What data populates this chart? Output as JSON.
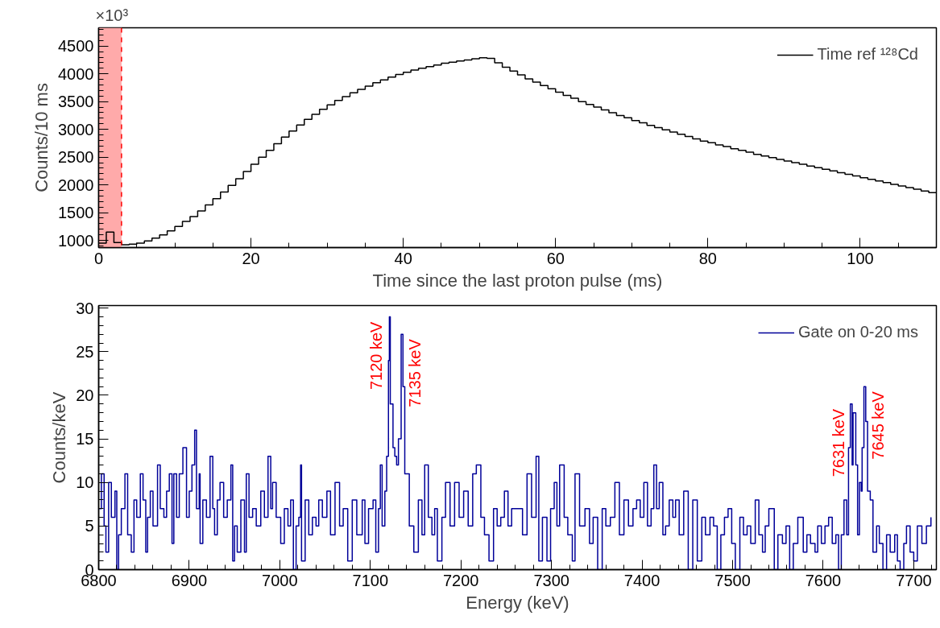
{
  "chart_data": [
    {
      "type": "histogram",
      "xlabel": "Time since the last proton pulse (ms)",
      "ylabel": "Counts/10 ms",
      "bins": [
        0,
        1,
        2,
        3,
        4,
        5,
        6,
        7,
        8,
        9,
        10,
        11,
        12,
        13,
        14,
        15,
        16,
        17,
        18,
        19,
        20,
        21,
        22,
        23,
        24,
        25,
        26,
        27,
        28,
        29,
        30,
        31,
        32,
        33,
        34,
        35,
        36,
        37,
        38,
        39,
        40,
        41,
        42,
        43,
        44,
        45,
        46,
        47,
        48,
        49,
        50,
        51,
        52,
        53,
        54,
        55,
        56,
        57,
        58,
        59,
        60,
        61,
        62,
        63,
        64,
        65,
        66,
        67,
        68,
        69,
        70,
        71,
        72,
        73,
        74,
        75,
        76,
        77,
        78,
        79,
        80,
        81,
        82,
        83,
        84,
        85,
        86,
        87,
        88,
        89,
        90,
        91,
        92,
        93,
        94,
        95,
        96,
        97,
        98,
        99,
        100,
        101,
        102,
        103,
        104,
        105,
        106,
        107,
        108,
        109,
        110
      ],
      "series": [
        {
          "name": "Time ref ¹²⁸Cd",
          "color": "#000000",
          "values": [
            950,
            1150,
            960,
            920,
            930,
            950,
            990,
            1040,
            1100,
            1170,
            1250,
            1340,
            1430,
            1530,
            1640,
            1750,
            1870,
            1990,
            2110,
            2240,
            2370,
            2500,
            2620,
            2740,
            2860,
            2970,
            3080,
            3180,
            3270,
            3360,
            3440,
            3520,
            3590,
            3660,
            3720,
            3780,
            3840,
            3890,
            3940,
            3990,
            4030,
            4070,
            4100,
            4130,
            4160,
            4190,
            4210,
            4230,
            4250,
            4270,
            4290,
            4280,
            4200,
            4120,
            4050,
            3980,
            3910,
            3850,
            3790,
            3730,
            3670,
            3610,
            3560,
            3500,
            3450,
            3400,
            3350,
            3300,
            3250,
            3210,
            3160,
            3120,
            3070,
            3030,
            2990,
            2950,
            2910,
            2870,
            2830,
            2790,
            2760,
            2720,
            2690,
            2650,
            2620,
            2590,
            2550,
            2520,
            2490,
            2460,
            2430,
            2400,
            2370,
            2340,
            2310,
            2280,
            2250,
            2220,
            2190,
            2160,
            2130,
            2100,
            2070,
            2040,
            2010,
            1980,
            1950,
            1920,
            1890,
            1860
          ]
        }
      ],
      "xlim": [
        0,
        110
      ],
      "xticks": [
        0,
        20,
        40,
        60,
        80,
        100
      ],
      "ylim": [
        870,
        4830
      ],
      "yticks": [
        1000,
        1500,
        2000,
        2500,
        3000,
        3500,
        4000,
        4500
      ],
      "bands": [
        {
          "axis": "x",
          "from": 0,
          "to": 3,
          "color": "#ffaaaa"
        }
      ],
      "ref_lines": [
        {
          "axis": "x",
          "value": 3,
          "color": "#ff0000",
          "line_style": "dashed"
        }
      ],
      "annotations": [
        "×10³"
      ],
      "legend": "top right",
      "grid": false
    },
    {
      "type": "step",
      "xlabel": "Energy (keV)",
      "ylabel": "Counts/keV",
      "series": [
        {
          "name": "Gate on 0-20 ms",
          "color": "#000099",
          "x": [
            6800,
            6803,
            6806,
            6808,
            6811,
            6814,
            6818,
            6820,
            6822,
            6825,
            6829,
            6832,
            6836,
            6839,
            6842,
            6846,
            6849,
            6852,
            6854,
            6857,
            6860,
            6865,
            6868,
            6872,
            6875,
            6878,
            6881,
            6883,
            6886,
            6889,
            6893,
            6897,
            6900,
            6903,
            6906,
            6908,
            6911,
            6912,
            6915,
            6919,
            6923,
            6926,
            6928,
            6931,
            6934,
            6938,
            6942,
            6946,
            6948,
            6950,
            6953,
            6957,
            6961,
            6963,
            6966,
            6970,
            6974,
            6979,
            6983,
            6987,
            6990,
            6992,
            6996,
            7001,
            7005,
            7009,
            7012,
            7015,
            7018,
            7021,
            7023,
            7024,
            7028,
            7032,
            7036,
            7040,
            7043,
            7047,
            7052,
            7056,
            7061,
            7066,
            7070,
            7075,
            7080,
            7085,
            7091,
            7094,
            7098,
            7103,
            7106,
            7109,
            7111,
            7113,
            7116,
            7118,
            7120,
            7121,
            7122,
            7125,
            7127,
            7129,
            7131,
            7134,
            7136,
            7138,
            7140,
            7143,
            7148,
            7153,
            7157,
            7160,
            7164,
            7168,
            7171,
            7174,
            7179,
            7183,
            7188,
            7193,
            7198,
            7203,
            7208,
            7213,
            7217,
            7222,
            7226,
            7231,
            7236,
            7240,
            7244,
            7248,
            7252,
            7256,
            7263,
            7268,
            7273,
            7278,
            7283,
            7286,
            7290,
            7295,
            7299,
            7303,
            7306,
            7309,
            7314,
            7318,
            7323,
            7326,
            7331,
            7337,
            7342,
            7346,
            7351,
            7356,
            7360,
            7365,
            7370,
            7375,
            7380,
            7385,
            7390,
            7394,
            7398,
            7402,
            7406,
            7410,
            7413,
            7416,
            7419,
            7423,
            7426,
            7430,
            7434,
            7437,
            7441,
            7446,
            7451,
            7456,
            7461,
            7466,
            7470,
            7475,
            7479,
            7483,
            7487,
            7491,
            7495,
            7499,
            7503,
            7508,
            7512,
            7516,
            7520,
            7525,
            7529,
            7533,
            7536,
            7540,
            7546,
            7550,
            7555,
            7559,
            7563,
            7567,
            7572,
            7578,
            7582,
            7586,
            7591,
            7594,
            7598,
            7602,
            7606,
            7610,
            7614,
            7617,
            7620,
            7623,
            7626,
            7628,
            7630,
            7632,
            7633,
            7636,
            7638,
            7640,
            7642,
            7643,
            7645,
            7647,
            7649,
            7652,
            7655,
            7659,
            7662,
            7666,
            7670,
            7674,
            7679,
            7682,
            7685,
            7689,
            7692,
            7696,
            7700,
            7704,
            7709,
            7714,
            7719
          ],
          "values": [
            7,
            11,
            5,
            2,
            10,
            6,
            9,
            0,
            4,
            7,
            11,
            4,
            2,
            8,
            6,
            11,
            8,
            2,
            6,
            9,
            5,
            12,
            7,
            6,
            9,
            11,
            3,
            11,
            6,
            11,
            14,
            6,
            9,
            12,
            16,
            7,
            11,
            3,
            8,
            6,
            13,
            7,
            4,
            8,
            10,
            6,
            8,
            12,
            1,
            5,
            2,
            8,
            2,
            11,
            6,
            7,
            5,
            9,
            6,
            13,
            7,
            10,
            6,
            3,
            7,
            5,
            8,
            0,
            5,
            6,
            12,
            1,
            8,
            4,
            6,
            5,
            8,
            6,
            9,
            4,
            10,
            5,
            7,
            1,
            8,
            4,
            8,
            3,
            7,
            8,
            2,
            7,
            12,
            5,
            9,
            13,
            24,
            29,
            19,
            14,
            13,
            12,
            15,
            27,
            21,
            11,
            11,
            5,
            2,
            8,
            4,
            12,
            6,
            4,
            7,
            1,
            6,
            10,
            5,
            10,
            6,
            9,
            5,
            11,
            12,
            6,
            4,
            1,
            7,
            5,
            6,
            9,
            5,
            7,
            7,
            4,
            11,
            6,
            13,
            1,
            6,
            1,
            7,
            10,
            5,
            12,
            6,
            4,
            1,
            11,
            5,
            7,
            3,
            6,
            0,
            7,
            5,
            6,
            10,
            4,
            8,
            5,
            7,
            8,
            6,
            10,
            5,
            7,
            12,
            7,
            10,
            4,
            5,
            8,
            6,
            8,
            4,
            9,
            0,
            8,
            1,
            6,
            4,
            6,
            5,
            0,
            4,
            6,
            7,
            3,
            0,
            6,
            4,
            5,
            3,
            8,
            4,
            2,
            5,
            7,
            0,
            4,
            3,
            5,
            0,
            3,
            6,
            2,
            4,
            3,
            2,
            5,
            3,
            5,
            6,
            3,
            4,
            0,
            4,
            8,
            4,
            14,
            19,
            12,
            18,
            12,
            4,
            10,
            9,
            14,
            21,
            17,
            9,
            8,
            2,
            5,
            3,
            0,
            4,
            2,
            4,
            1,
            0,
            3,
            5,
            2,
            1,
            5,
            3,
            5,
            6
          ]
        }
      ],
      "xlim": [
        6800,
        7725
      ],
      "xticks": [
        6800,
        6900,
        7000,
        7100,
        7200,
        7300,
        7400,
        7500,
        7600,
        7700
      ],
      "ylim": [
        0,
        30.3
      ],
      "yticks": [
        0,
        5,
        10,
        15,
        20,
        25,
        30
      ],
      "annotations": [
        {
          "text": "7120 keV",
          "x": 7120,
          "y": 29
        },
        {
          "text": "7135 keV",
          "x": 7134,
          "y": 27
        },
        {
          "text": "7631 keV",
          "x": 7630,
          "y": 19
        },
        {
          "text": "7645 keV",
          "x": 7645,
          "y": 21
        }
      ],
      "legend": "top right",
      "grid": false
    }
  ]
}
